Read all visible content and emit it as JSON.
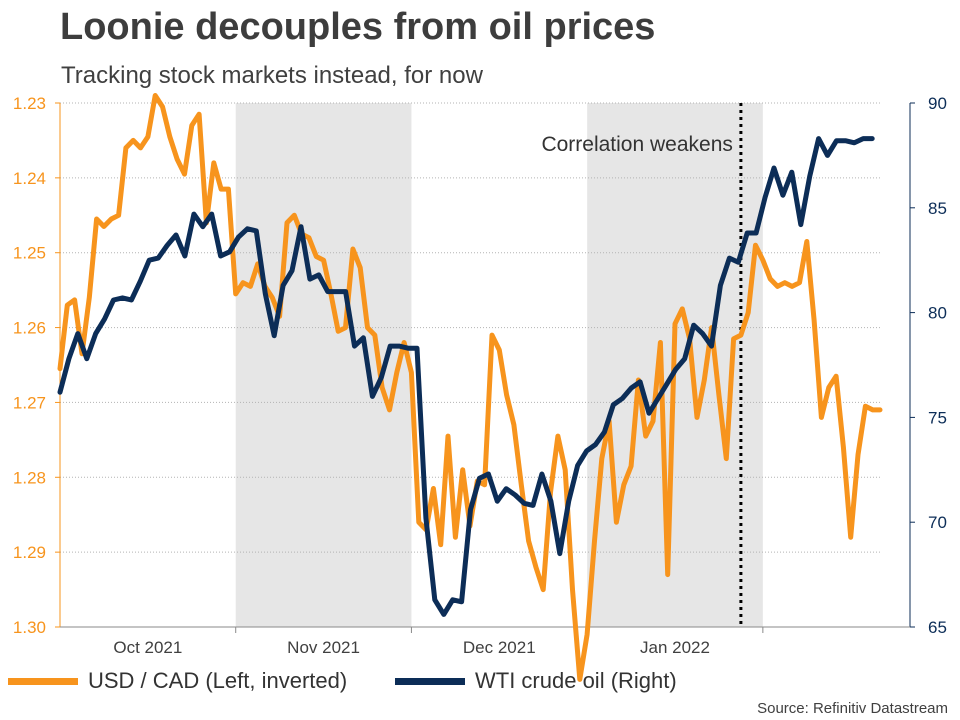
{
  "chart_data": {
    "type": "line",
    "title": "Loonie decouples from oil prices",
    "subtitle": "Tracking stock markets instead, for now",
    "source": "Source: Refinitiv Datastream",
    "annotation": "Correlation weakens",
    "annotation_date_index": 93,
    "x_tick_labels": [
      {
        "label": "Oct 2021",
        "index": 12
      },
      {
        "label": "Nov 2021",
        "index": 36
      },
      {
        "label": "Dec 2021",
        "index": 60
      },
      {
        "label": "Jan 2022",
        "index": 84
      }
    ],
    "month_boundaries": [
      24,
      48,
      72,
      96
    ],
    "shaded_ranges": [
      [
        24,
        48
      ],
      [
        72,
        96
      ]
    ],
    "left_axis": {
      "label": "USD / CAD (Left, inverted)",
      "min": 1.23,
      "max": 1.3,
      "inverted": true,
      "ticks": [
        "1.23",
        "1.24",
        "1.25",
        "1.26",
        "1.27",
        "1.28",
        "1.29",
        "1.30"
      ],
      "tick_values": [
        1.23,
        1.24,
        1.25,
        1.26,
        1.27,
        1.28,
        1.29,
        1.3
      ]
    },
    "right_axis": {
      "label": "WTI crude oil (Right)",
      "min": 65,
      "max": 90,
      "ticks": [
        "65",
        "70",
        "75",
        "80",
        "85",
        "90"
      ],
      "tick_values": [
        65,
        70,
        75,
        80,
        85,
        90
      ]
    },
    "series": [
      {
        "name": "USD / CAD (Left, inverted)",
        "axis": "left",
        "color": "#F7941D",
        "values": [
          1.2655,
          1.257,
          1.2563,
          1.2635,
          1.256,
          1.2455,
          1.2465,
          1.2455,
          1.245,
          1.236,
          1.235,
          1.236,
          1.2345,
          1.229,
          1.2305,
          1.2345,
          1.2375,
          1.2395,
          1.233,
          1.2315,
          1.246,
          1.238,
          1.2415,
          1.2415,
          1.2555,
          1.254,
          1.2545,
          1.2515,
          1.2545,
          1.256,
          1.2585,
          1.246,
          1.245,
          1.2475,
          1.248,
          1.2505,
          1.251,
          1.2555,
          1.2605,
          1.26,
          1.2495,
          1.252,
          1.26,
          1.261,
          1.268,
          1.271,
          1.266,
          1.262,
          1.266,
          1.286,
          1.287,
          1.2815,
          1.289,
          1.2745,
          1.288,
          1.279,
          1.2865,
          1.2805,
          1.281,
          1.261,
          1.263,
          1.269,
          1.273,
          1.281,
          1.2885,
          1.292,
          1.295,
          1.282,
          1.2745,
          1.279,
          1.295,
          1.307,
          1.301,
          1.2885,
          1.2775,
          1.2725,
          1.286,
          1.281,
          1.2785,
          1.267,
          1.2745,
          1.2725,
          1.262,
          1.293,
          1.2595,
          1.2575,
          1.2615,
          1.272,
          1.267,
          1.26,
          1.269,
          1.2775,
          1.2615,
          1.261,
          1.258,
          1.249,
          1.251,
          1.2535,
          1.2545,
          1.254,
          1.2545,
          1.254,
          1.2485,
          1.259,
          1.272,
          1.268,
          1.2665,
          1.276,
          1.288,
          1.277,
          1.2705,
          1.271,
          1.271
        ],
        "dates_note": "daily values, index 0 = mid-September 2021"
      },
      {
        "name": "WTI crude oil (Right)",
        "axis": "right",
        "color": "#0C2D57",
        "values": [
          76.2,
          77.8,
          79.0,
          77.8,
          79.0,
          79.7,
          80.6,
          80.7,
          80.6,
          81.5,
          82.5,
          82.6,
          83.2,
          83.7,
          82.7,
          84.7,
          84.1,
          84.7,
          82.7,
          82.9,
          83.6,
          84.0,
          83.9,
          80.9,
          78.9,
          81.3,
          82.0,
          84.1,
          81.6,
          81.8,
          81.0,
          81.0,
          81.0,
          78.4,
          78.8,
          76.0,
          76.9,
          78.4,
          78.4,
          78.3,
          78.3,
          70.2,
          66.3,
          65.6,
          66.3,
          66.2,
          70.6,
          72.1,
          72.3,
          71.0,
          71.6,
          71.3,
          70.9,
          70.8,
          72.3,
          71.0,
          68.5,
          71.0,
          72.7,
          73.4,
          73.7,
          74.3,
          75.6,
          75.9,
          76.4,
          76.7,
          75.2,
          75.9,
          76.6,
          77.3,
          77.8,
          79.4,
          79.0,
          78.4,
          81.3,
          82.6,
          82.4,
          83.8,
          83.8,
          85.5,
          86.9,
          85.6,
          86.7,
          84.2,
          86.5,
          88.3,
          87.5,
          88.2,
          88.2,
          88.1,
          88.3,
          88.3
        ],
        "x_offset_index": 0,
        "x_step": 1.219
      }
    ]
  },
  "legend": {
    "usdcad_label": "USD / CAD (Left, inverted)",
    "wti_label": "WTI crude oil (Right)",
    "usdcad_color": "#F7941D",
    "wti_color": "#0C2D57"
  }
}
